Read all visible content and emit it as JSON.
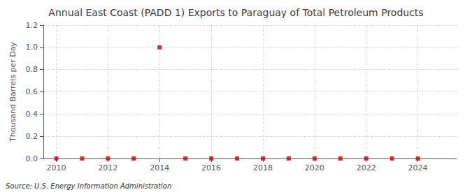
{
  "chart_data": {
    "type": "scatter",
    "title": "Annual East Coast (PADD 1) Exports to Paraguay of Total Petroleum Products",
    "ylabel": "Thousand Barrels per Day",
    "annotations": [
      "Source: U.S. Energy Information Administration"
    ],
    "x": [
      2010,
      2011,
      2012,
      2013,
      2014,
      2015,
      2016,
      2017,
      2018,
      2019,
      2020,
      2021,
      2022,
      2023,
      2024
    ],
    "values": [
      0,
      0,
      0,
      0,
      1.0,
      0,
      0,
      0,
      0,
      0,
      0,
      0,
      0,
      0,
      0
    ],
    "color": "#cc0000",
    "marker": "square",
    "xlim": [
      2009.5,
      2025.5
    ],
    "xticks": [
      2010,
      2012,
      2014,
      2016,
      2018,
      2020,
      2022,
      2024
    ],
    "ylim": [
      0.0,
      1.2
    ],
    "yticks": [
      {
        "value": 0,
        "label": "0.0"
      },
      0.2,
      0.4,
      0.6,
      0.8,
      {
        "value": 1,
        "label": "1.0"
      },
      1.2
    ],
    "grid": true
  }
}
